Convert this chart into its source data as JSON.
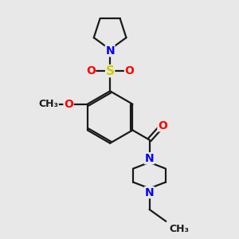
{
  "bg_color": "#e8e8e8",
  "bond_color": "#1a1a1a",
  "n_color": "#0000ff",
  "o_color": "#ff0000",
  "s_color": "#cccc00",
  "line_width": 1.6,
  "font_size": 10,
  "xlim": [
    0,
    10
  ],
  "ylim": [
    0,
    10
  ]
}
